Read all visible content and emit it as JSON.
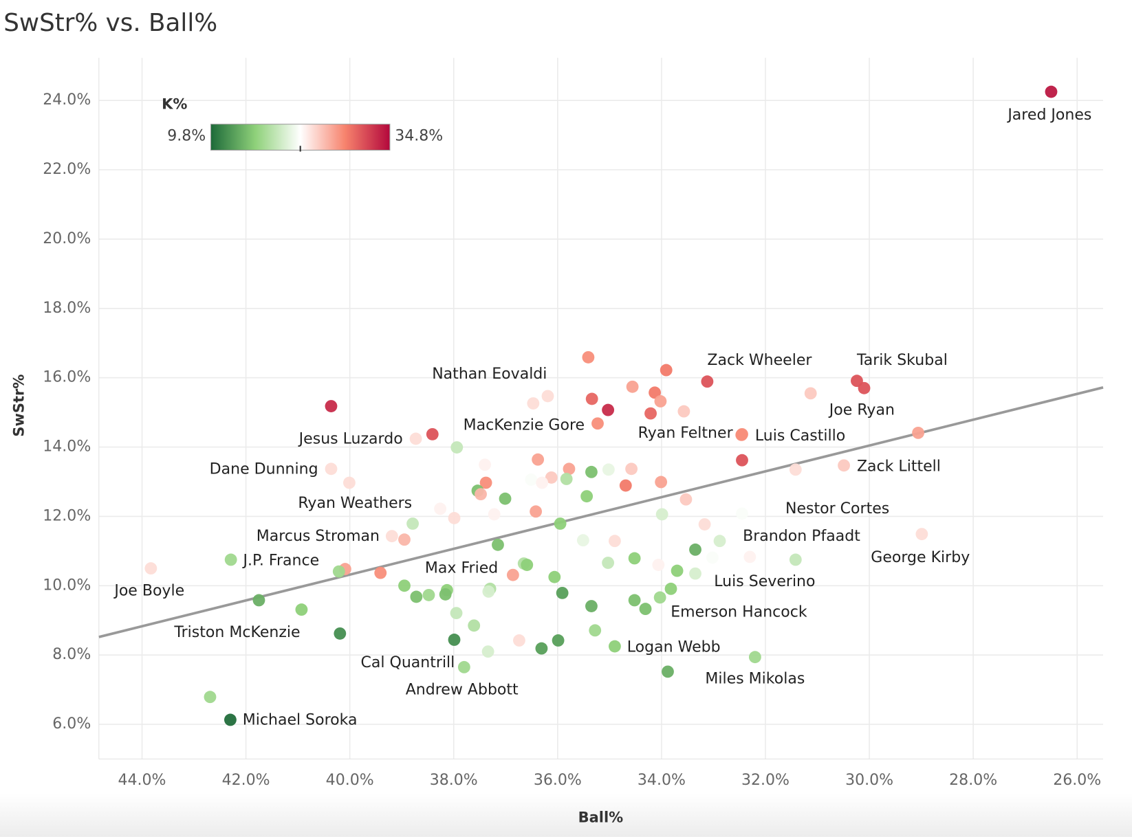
{
  "chart_data": {
    "type": "scatter",
    "title": "SwStr% vs. Ball%",
    "x_label": "Ball%",
    "y_label": "SwStr%",
    "xlim": [
      44.83,
      25.5
    ],
    "ylim": [
      5.0,
      25.23
    ],
    "xticks": [
      {
        "value": 44,
        "label": "44.0%"
      },
      {
        "value": 42,
        "label": "42.0%"
      },
      {
        "value": 40,
        "label": "40.0%"
      },
      {
        "value": 38,
        "label": "38.0%"
      },
      {
        "value": 36,
        "label": "36.0%"
      },
      {
        "value": 34,
        "label": "34.0%"
      },
      {
        "value": 32,
        "label": "32.0%"
      },
      {
        "value": 30,
        "label": "30.0%"
      },
      {
        "value": 28,
        "label": "28.0%"
      },
      {
        "value": 26,
        "label": "26.0%"
      }
    ],
    "yticks": [
      {
        "value": 6,
        "label": "6.0%"
      },
      {
        "value": 8,
        "label": "8.0%"
      },
      {
        "value": 10,
        "label": "10.0%"
      },
      {
        "value": 12,
        "label": "12.0%"
      },
      {
        "value": 14,
        "label": "14.0%"
      },
      {
        "value": 16,
        "label": "16.0%"
      },
      {
        "value": 18,
        "label": "18.0%"
      },
      {
        "value": 20,
        "label": "20.0%"
      },
      {
        "value": 22,
        "label": "22.0%"
      },
      {
        "value": 24,
        "label": "24.0%"
      }
    ],
    "grid": true,
    "color_scale": {
      "title": "K%",
      "min": {
        "value": 9.8,
        "label": "9.8%"
      },
      "max": {
        "value": 34.8,
        "label": "34.8%"
      },
      "colors": [
        "#1d6a39",
        "#8fd17a",
        "#ffffff",
        "#f7836d",
        "#b3083c"
      ]
    },
    "trendline": {
      "x": [
        44.83,
        25.5
      ],
      "y": [
        8.52,
        15.72
      ],
      "color": "#999999"
    },
    "names": [
      "Jared Jones",
      null,
      null,
      "Zack Wheeler",
      "Tarik Skubal",
      "Joe Ryan",
      null,
      null,
      null,
      null,
      "Nathan Eovaldi",
      null,
      null,
      null,
      null,
      null,
      null,
      "MacKenzie Gore",
      null,
      "Jesus Luzardo",
      "Ryan Feltner",
      "Luis Castillo",
      null,
      null,
      null,
      "Zack Littell",
      null,
      "Dane Dunning",
      null,
      null,
      null,
      null,
      null,
      null,
      null,
      null,
      null,
      null,
      null,
      null,
      null,
      null,
      null,
      null,
      null,
      null,
      null,
      "Ryan Weathers",
      null,
      null,
      null,
      null,
      "Nestor Cortes",
      null,
      null,
      null,
      "Marcus Stroman",
      null,
      null,
      null,
      null,
      "Brandon Pfaadt",
      "George Kirby",
      null,
      "J.P. France",
      "Joe Boyle",
      null,
      null,
      null,
      null,
      null,
      null,
      null,
      "Max Fried",
      null,
      null,
      null,
      null,
      "Luis Severino",
      null,
      null,
      null,
      null,
      null,
      null,
      null,
      null,
      null,
      null,
      null,
      null,
      null,
      null,
      null,
      "Emerson Hancock",
      null,
      null,
      null,
      null,
      "Triston McKenzie",
      null,
      null,
      null,
      "Logan Webb",
      null,
      "Cal Quantrill",
      "Miles Mikolas",
      "Andrew Abbott",
      null,
      null,
      "Michael Soroka"
    ],
    "x": [
      26.5,
      35.41,
      33.91,
      33.12,
      30.24,
      30.1,
      34.56,
      34.13,
      31.13,
      36.47,
      36.19,
      35.34,
      34.02,
      35.03,
      40.36,
      33.57,
      34.21,
      35.23,
      38.41,
      38.73,
      32.46,
      32.45,
      29.06,
      37.94,
      32.45,
      30.49,
      31.42,
      40.36,
      40.01,
      37.4,
      36.38,
      35.78,
      35.35,
      35.02,
      34.58,
      36.12,
      36.51,
      35.83,
      36.3,
      37.38,
      34.01,
      34.69,
      37.54,
      37.48,
      37.01,
      35.44,
      33.53,
      38.26,
      37.22,
      36.42,
      37.99,
      33.99,
      32.45,
      38.79,
      35.95,
      33.17,
      39.19,
      38.95,
      37.15,
      35.51,
      34.9,
      32.88,
      28.99,
      33.35,
      42.29,
      43.83,
      31.42,
      32.3,
      34.52,
      33.02,
      35.03,
      34.06,
      36.65,
      36.59,
      40.09,
      40.21,
      39.41,
      33.7,
      33.35,
      36.86,
      36.06,
      38.95,
      37.3,
      37.33,
      38.13,
      33.82,
      38.72,
      38.48,
      38.16,
      35.91,
      41.75,
      34.03,
      34.52,
      35.35,
      34.31,
      40.93,
      37.95,
      37.61,
      35.28,
      40.19,
      37.99,
      35.99,
      36.74,
      34.9,
      36.31,
      37.34,
      32.2,
      37.8,
      33.88,
      42.69,
      42.3
    ],
    "values": [
      24.25,
      16.59,
      16.22,
      15.89,
      15.91,
      15.7,
      15.74,
      15.57,
      15.55,
      15.26,
      15.47,
      15.39,
      15.32,
      15.07,
      15.18,
      15.03,
      14.97,
      14.68,
      14.37,
      14.24,
      14.35,
      14.37,
      14.41,
      13.99,
      13.62,
      13.47,
      13.35,
      13.37,
      12.97,
      13.49,
      13.64,
      13.37,
      13.28,
      13.35,
      13.37,
      13.12,
      13.06,
      13.08,
      12.97,
      12.97,
      12.99,
      12.89,
      12.74,
      12.64,
      12.51,
      12.58,
      12.49,
      12.22,
      12.06,
      12.14,
      11.95,
      12.06,
      12.08,
      11.79,
      11.79,
      11.77,
      11.43,
      11.33,
      11.18,
      11.31,
      11.29,
      11.29,
      11.49,
      11.04,
      10.75,
      10.5,
      10.75,
      10.83,
      10.79,
      10.81,
      10.66,
      10.6,
      10.64,
      10.6,
      10.48,
      10.41,
      10.37,
      10.43,
      10.35,
      10.31,
      10.25,
      10.0,
      9.91,
      9.83,
      9.87,
      9.91,
      9.68,
      9.73,
      9.75,
      9.79,
      9.58,
      9.66,
      9.58,
      9.41,
      9.33,
      9.31,
      9.21,
      8.85,
      8.71,
      8.62,
      8.44,
      8.42,
      8.42,
      8.25,
      8.19,
      8.1,
      7.94,
      7.65,
      7.52,
      6.79,
      6.13
    ],
    "color_values": [
      34,
      28,
      29,
      31,
      31,
      31,
      27,
      29,
      25,
      24,
      24,
      30,
      27,
      33,
      33,
      25,
      30,
      28,
      31,
      24,
      28,
      28,
      27,
      19,
      31,
      25,
      24,
      24,
      24,
      23,
      27,
      27,
      15,
      21,
      25,
      25,
      22,
      18,
      23,
      28,
      27,
      29,
      15,
      26,
      15,
      16,
      25,
      23,
      23,
      27,
      24,
      20,
      22,
      19,
      16,
      24,
      24,
      26,
      15,
      21,
      24,
      20,
      24,
      14,
      17,
      24,
      19,
      23,
      16,
      22,
      19,
      23,
      18,
      16,
      27,
      17,
      28,
      16,
      20,
      27,
      16,
      16,
      18,
      20,
      16,
      16,
      15,
      17,
      15,
      13,
      14,
      17,
      15,
      14,
      15,
      16,
      19,
      18,
      17,
      12,
      12,
      13,
      24,
      16,
      13,
      20,
      17,
      17,
      14,
      17,
      10
    ]
  }
}
